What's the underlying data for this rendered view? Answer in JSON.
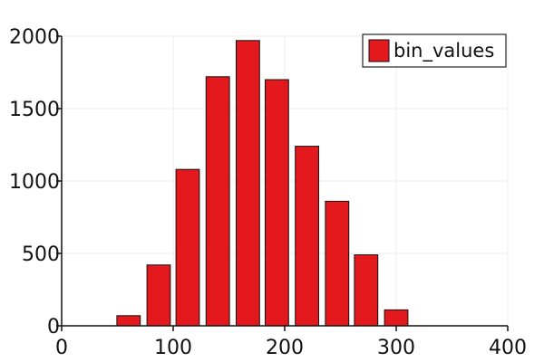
{
  "chart_data": {
    "type": "bar",
    "title": "",
    "xlabel": "",
    "ylabel": "",
    "xlim": [
      0,
      400
    ],
    "ylim": [
      0,
      2000
    ],
    "x_ticks": [
      0,
      100,
      200,
      300,
      400
    ],
    "y_ticks": [
      0,
      500,
      1000,
      1500,
      2000
    ],
    "grid": true,
    "legend_position": "top-right",
    "bar_width": 21,
    "series": [
      {
        "name": "bin_values",
        "color": "#e3191e",
        "x": [
          60,
          87,
          113,
          140,
          167,
          193,
          220,
          247,
          273,
          300
        ],
        "values": [
          70,
          420,
          1080,
          1720,
          1970,
          1700,
          1240,
          860,
          490,
          110
        ]
      }
    ]
  }
}
